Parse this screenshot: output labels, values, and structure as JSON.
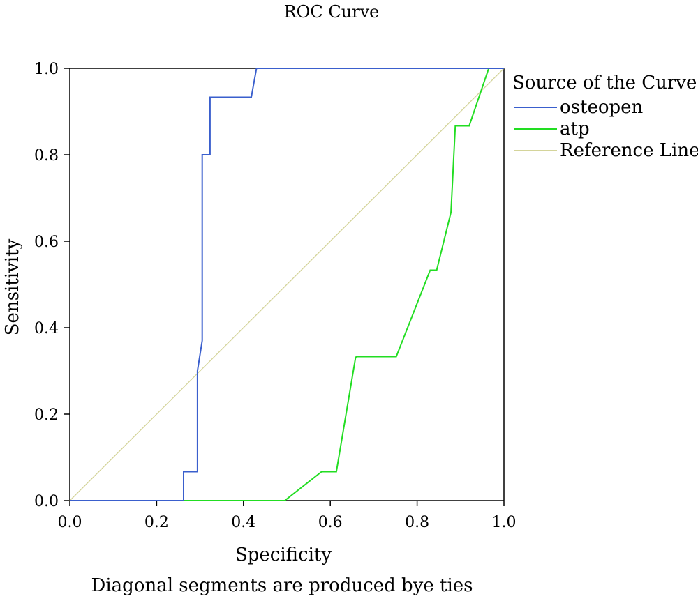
{
  "chart_data": {
    "type": "line",
    "title": "ROC Curve",
    "xlabel": "Specificity",
    "ylabel": "Sensitivity",
    "xlim": [
      0,
      1
    ],
    "ylim": [
      0,
      1
    ],
    "xticks": [
      "0.0",
      "0.2",
      "0.4",
      "0.6",
      "0.8",
      "1.0"
    ],
    "yticks": [
      "0.0",
      "0.2",
      "0.4",
      "0.6",
      "0.8",
      "1.0"
    ],
    "grid": false,
    "legend": {
      "title": "Source of the Curve",
      "position": "right"
    },
    "footnote": "Diagonal segments are produced bye ties",
    "series": [
      {
        "name": "osteopen",
        "color": "#3a5fcd",
        "x": [
          0,
          0.262,
          0.262,
          0.294,
          0.294,
          0.305,
          0.305,
          0.308,
          0.308,
          0.323,
          0.323,
          0.418,
          0.43,
          0.43,
          0.965,
          1.0
        ],
        "y": [
          0,
          0,
          0.067,
          0.067,
          0.3,
          0.37,
          0.8,
          0.8,
          0.8,
          0.8,
          0.933,
          0.933,
          1.0,
          1.0,
          1.0,
          1.0
        ]
      },
      {
        "name": "atp",
        "color": "#22dd22",
        "x": [
          0,
          0.495,
          0.58,
          0.614,
          0.658,
          0.66,
          0.752,
          0.83,
          0.845,
          0.878,
          0.888,
          0.888,
          0.92,
          0.965,
          0.97,
          1.0
        ],
        "y": [
          0,
          0,
          0.067,
          0.067,
          0.33,
          0.333,
          0.333,
          0.533,
          0.533,
          0.667,
          0.867,
          0.867,
          0.867,
          1.0,
          1.0,
          1.0
        ]
      },
      {
        "name": "Reference Line",
        "color": "#d4d49a",
        "x": [
          0,
          1
        ],
        "y": [
          0,
          1
        ]
      }
    ]
  }
}
